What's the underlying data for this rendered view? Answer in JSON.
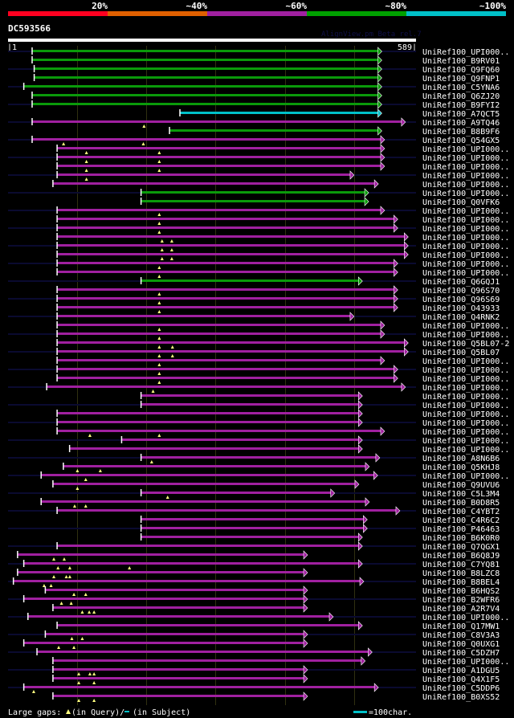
{
  "scale_header": {
    "labels": [
      "20%",
      "~40%",
      "~60%",
      "~80%",
      "~100%"
    ],
    "colors": [
      "#ff0020",
      "#e06000",
      "#a020a0",
      "#00a000",
      "#00c0c8"
    ]
  },
  "query": {
    "name": "DC593566",
    "start_label": "|1",
    "end_label": "589|",
    "length": 589
  },
  "watermark": "AlignView.pm Beta rel.7",
  "colors": {
    "g": "#0a9a0a",
    "m": "#a020a0",
    "c": "#00c0c8",
    "navy": "#0a0a30",
    "grid": "#303010",
    "gap": "#ffff80"
  },
  "grid_residues": [
    100,
    200,
    300,
    400,
    500
  ],
  "rows": [
    {
      "label": "UniRef100_UPI000..",
      "start": 36,
      "end": 534,
      "color": "g",
      "gaps": []
    },
    {
      "label": "UniRef100_B9RV01",
      "start": 36,
      "end": 534,
      "color": "g",
      "gaps": []
    },
    {
      "label": "UniRef100_Q9FQ60",
      "start": 39,
      "end": 534,
      "color": "g",
      "gaps": []
    },
    {
      "label": "UniRef100_Q9FNP1",
      "start": 39,
      "end": 534,
      "color": "g",
      "gaps": []
    },
    {
      "label": "UniRef100_C5YNA6",
      "start": 24,
      "end": 534,
      "color": "g",
      "gaps": []
    },
    {
      "label": "UniRef100_Q6ZJ20",
      "start": 36,
      "end": 534,
      "color": "g",
      "gaps": []
    },
    {
      "label": "UniRef100_B9FYI2",
      "start": 36,
      "end": 534,
      "color": "g",
      "gaps": []
    },
    {
      "label": "UniRef100_A7QCT5",
      "start": 249,
      "end": 534,
      "color": "c",
      "gaps": []
    },
    {
      "label": "UniRef100_A9TQ46",
      "start": 36,
      "end": 568,
      "color": "m",
      "gaps": [
        197
      ]
    },
    {
      "label": "UniRef100_B8B9F6",
      "start": 234,
      "end": 534,
      "color": "g",
      "gaps": []
    },
    {
      "label": "UniRef100_Q54GX5",
      "start": 36,
      "end": 538,
      "color": "m",
      "gaps": [
        81,
        196
      ]
    },
    {
      "label": "UniRef100_UPI000..",
      "start": 72,
      "end": 538,
      "color": "m",
      "gaps": [
        114,
        219
      ]
    },
    {
      "label": "UniRef100_UPI000..",
      "start": 72,
      "end": 538,
      "color": "m",
      "gaps": [
        114,
        219
      ]
    },
    {
      "label": "UniRef100_UPI000..",
      "start": 72,
      "end": 538,
      "color": "m",
      "gaps": [
        114,
        219
      ]
    },
    {
      "label": "UniRef100_UPI000..",
      "start": 72,
      "end": 494,
      "color": "m",
      "gaps": [
        114
      ]
    },
    {
      "label": "UniRef100_UPI000..",
      "start": 66,
      "end": 529,
      "color": "m",
      "gaps": []
    },
    {
      "label": "UniRef100_UPI000..",
      "start": 193,
      "end": 515,
      "color": "g",
      "gaps": []
    },
    {
      "label": "UniRef100_Q0VFK6",
      "start": 193,
      "end": 515,
      "color": "g",
      "gaps": []
    },
    {
      "label": "UniRef100_UPI000..",
      "start": 72,
      "end": 538,
      "color": "m",
      "gaps": [
        219
      ]
    },
    {
      "label": "UniRef100_UPI000..",
      "start": 72,
      "end": 557,
      "color": "m",
      "gaps": [
        219
      ]
    },
    {
      "label": "UniRef100_UPI000..",
      "start": 72,
      "end": 557,
      "color": "m",
      "gaps": [
        219
      ]
    },
    {
      "label": "UniRef100_UPI000..",
      "start": 72,
      "end": 572,
      "color": "m",
      "gaps": [
        223,
        237
      ]
    },
    {
      "label": "UniRef100_UPI000..",
      "start": 72,
      "end": 572,
      "color": "m",
      "gaps": [
        223,
        237
      ]
    },
    {
      "label": "UniRef100_UPI000..",
      "start": 72,
      "end": 572,
      "color": "m",
      "gaps": [
        223,
        237
      ]
    },
    {
      "label": "UniRef100_UPI000..",
      "start": 72,
      "end": 557,
      "color": "m",
      "gaps": [
        219
      ]
    },
    {
      "label": "UniRef100_UPI000..",
      "start": 72,
      "end": 557,
      "color": "m",
      "gaps": [
        219
      ]
    },
    {
      "label": "UniRef100_Q6GQJ1",
      "start": 193,
      "end": 506,
      "color": "g",
      "gaps": []
    },
    {
      "label": "UniRef100_Q96S70",
      "start": 72,
      "end": 557,
      "color": "m",
      "gaps": [
        219
      ]
    },
    {
      "label": "UniRef100_Q96S69",
      "start": 72,
      "end": 557,
      "color": "m",
      "gaps": [
        219
      ]
    },
    {
      "label": "UniRef100_O43933",
      "start": 72,
      "end": 557,
      "color": "m",
      "gaps": [
        219
      ]
    },
    {
      "label": "UniRef100_Q4RNK2",
      "start": 72,
      "end": 494,
      "color": "m",
      "gaps": []
    },
    {
      "label": "UniRef100_UPI000..",
      "start": 72,
      "end": 538,
      "color": "m",
      "gaps": [
        219
      ]
    },
    {
      "label": "UniRef100_UPI000..",
      "start": 72,
      "end": 538,
      "color": "m",
      "gaps": [
        219
      ]
    },
    {
      "label": "UniRef100_Q5BL07-2",
      "start": 72,
      "end": 572,
      "color": "m",
      "gaps": [
        219,
        238
      ]
    },
    {
      "label": "UniRef100_Q5BL07",
      "start": 72,
      "end": 572,
      "color": "m",
      "gaps": [
        219,
        238
      ]
    },
    {
      "label": "UniRef100_UPI000..",
      "start": 72,
      "end": 538,
      "color": "m",
      "gaps": [
        219
      ]
    },
    {
      "label": "UniRef100_UPI000..",
      "start": 72,
      "end": 557,
      "color": "m",
      "gaps": [
        219
      ]
    },
    {
      "label": "UniRef100_UPI000..",
      "start": 72,
      "end": 557,
      "color": "m",
      "gaps": [
        219
      ]
    },
    {
      "label": "UniRef100_UPI000..",
      "start": 57,
      "end": 568,
      "color": "m",
      "gaps": [
        210
      ]
    },
    {
      "label": "UniRef100_UPI000..",
      "start": 193,
      "end": 506,
      "color": "m",
      "gaps": []
    },
    {
      "label": "UniRef100_UPI000..",
      "start": 193,
      "end": 506,
      "color": "m",
      "gaps": []
    },
    {
      "label": "UniRef100_UPI000..",
      "start": 72,
      "end": 506,
      "color": "m",
      "gaps": []
    },
    {
      "label": "UniRef100_UPI000..",
      "start": 72,
      "end": 506,
      "color": "m",
      "gaps": []
    },
    {
      "label": "UniRef100_UPI000..",
      "start": 72,
      "end": 538,
      "color": "m",
      "gaps": [
        119,
        219
      ]
    },
    {
      "label": "UniRef100_UPI000..",
      "start": 165,
      "end": 506,
      "color": "m",
      "gaps": []
    },
    {
      "label": "UniRef100_UPI000..",
      "start": 90,
      "end": 506,
      "color": "m",
      "gaps": []
    },
    {
      "label": "UniRef100_A8N6B6",
      "start": 193,
      "end": 531,
      "color": "m",
      "gaps": [
        208
      ]
    },
    {
      "label": "UniRef100_Q5KHJ8",
      "start": 81,
      "end": 516,
      "color": "m",
      "gaps": [
        101,
        134
      ]
    },
    {
      "label": "UniRef100_UPI000..",
      "start": 49,
      "end": 528,
      "color": "m",
      "gaps": [
        113
      ]
    },
    {
      "label": "UniRef100_Q9UVU6",
      "start": 66,
      "end": 501,
      "color": "m",
      "gaps": [
        101
      ]
    },
    {
      "label": "UniRef100_C5L3M4",
      "start": 193,
      "end": 466,
      "color": "m",
      "gaps": [
        231
      ]
    },
    {
      "label": "UniRef100_B0D8R5",
      "start": 49,
      "end": 516,
      "color": "m",
      "gaps": [
        97,
        113
      ]
    },
    {
      "label": "UniRef100_C4YBT2",
      "start": 72,
      "end": 560,
      "color": "m",
      "gaps": []
    },
    {
      "label": "UniRef100_C4R6C2",
      "start": 193,
      "end": 513,
      "color": "m",
      "gaps": []
    },
    {
      "label": "UniRef100_P46463",
      "start": 193,
      "end": 513,
      "color": "m",
      "gaps": []
    },
    {
      "label": "UniRef100_B6K0R0",
      "start": 193,
      "end": 506,
      "color": "m",
      "gaps": []
    },
    {
      "label": "UniRef100_Q7QGX1",
      "start": 72,
      "end": 506,
      "color": "m",
      "gaps": []
    },
    {
      "label": "UniRef100_B6Q8J9",
      "start": 15,
      "end": 427,
      "color": "m",
      "gaps": [
        67,
        82
      ]
    },
    {
      "label": "UniRef100_C7YQ81",
      "start": 24,
      "end": 506,
      "color": "m",
      "gaps": [
        73,
        90,
        176
      ]
    },
    {
      "label": "UniRef100_B8LZC8",
      "start": 15,
      "end": 427,
      "color": "m",
      "gaps": [
        67,
        85,
        90
      ]
    },
    {
      "label": "UniRef100_B8BEL4",
      "start": 9,
      "end": 508,
      "color": "m",
      "gaps": [
        53,
        63
      ]
    },
    {
      "label": "UniRef100_B6HQS2",
      "start": 55,
      "end": 427,
      "color": "m",
      "gaps": [
        96,
        113
      ]
    },
    {
      "label": "UniRef100_B2WFR6",
      "start": 24,
      "end": 427,
      "color": "m",
      "gaps": [
        78,
        92
      ]
    },
    {
      "label": "UniRef100_A2R7V4",
      "start": 66,
      "end": 427,
      "color": "m",
      "gaps": [
        108,
        118,
        125
      ]
    },
    {
      "label": "UniRef100_UPI000..",
      "start": 30,
      "end": 464,
      "color": "m",
      "gaps": []
    },
    {
      "label": "UniRef100_Q17MW1",
      "start": 72,
      "end": 506,
      "color": "m",
      "gaps": []
    },
    {
      "label": "UniRef100_C8V3A3",
      "start": 55,
      "end": 427,
      "color": "m",
      "gaps": [
        93,
        108
      ]
    },
    {
      "label": "UniRef100_Q0UXG1",
      "start": 24,
      "end": 427,
      "color": "m",
      "gaps": [
        74,
        96
      ]
    },
    {
      "label": "UniRef100_C5DZH7",
      "start": 43,
      "end": 520,
      "color": "m",
      "gaps": []
    },
    {
      "label": "UniRef100_UPI000..",
      "start": 66,
      "end": 510,
      "color": "m",
      "gaps": []
    },
    {
      "label": "UniRef100_A1DGU5",
      "start": 66,
      "end": 427,
      "color": "m",
      "gaps": [
        103,
        119,
        125
      ]
    },
    {
      "label": "UniRef100_Q4X1F5",
      "start": 66,
      "end": 427,
      "color": "m",
      "gaps": [
        103,
        125
      ]
    },
    {
      "label": "UniRef100_C5DDP6",
      "start": 24,
      "end": 529,
      "color": "m",
      "gaps": [
        38
      ]
    },
    {
      "label": "UniRef100_B0XS52",
      "start": 66,
      "end": 427,
      "color": "m",
      "gaps": [
        103,
        125
      ]
    }
  ],
  "legend": {
    "large_gaps": "Large gaps:",
    "in_query": "(in Query)/",
    "in_subject": "(in Subject)",
    "scale": "=100char."
  }
}
